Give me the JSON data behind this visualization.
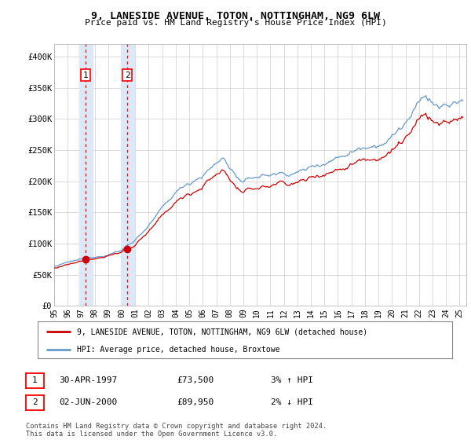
{
  "title1": "9, LANESIDE AVENUE, TOTON, NOTTINGHAM, NG9 6LW",
  "title2": "Price paid vs. HM Land Registry's House Price Index (HPI)",
  "ylabel_ticks": [
    "£0",
    "£50K",
    "£100K",
    "£150K",
    "£200K",
    "£250K",
    "£300K",
    "£350K",
    "£400K"
  ],
  "ytick_vals": [
    0,
    50000,
    100000,
    150000,
    200000,
    250000,
    300000,
    350000,
    400000
  ],
  "ylim": [
    0,
    420000
  ],
  "xlim_start": 1995.0,
  "xlim_end": 2025.5,
  "transaction1": {
    "date_num": 1997.33,
    "price": 73500,
    "label": "1",
    "pct": "3%",
    "dir": "↑",
    "date_str": "30-APR-1997"
  },
  "transaction2": {
    "date_num": 2000.42,
    "price": 89950,
    "label": "2",
    "pct": "2%",
    "dir": "↓",
    "date_str": "02-JUN-2000"
  },
  "legend_line1": "9, LANESIDE AVENUE, TOTON, NOTTINGHAM, NG9 6LW (detached house)",
  "legend_line2": "HPI: Average price, detached house, Broxtowe",
  "footer": "Contains HM Land Registry data © Crown copyright and database right 2024.\nThis data is licensed under the Open Government Licence v3.0.",
  "line_color_red": "#cc0000",
  "line_color_blue": "#6699cc",
  "plot_bg": "#ffffff",
  "box_highlight": "#dce8f5",
  "grid_color": "#cccccc",
  "t1_dot_price": 73500,
  "t2_dot_price": 89950
}
